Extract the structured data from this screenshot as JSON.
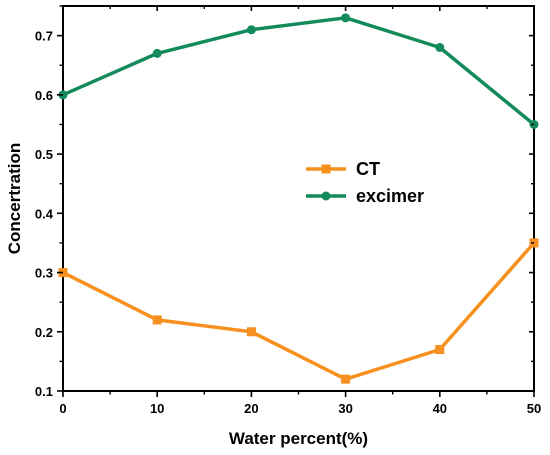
{
  "chart_data": {
    "type": "line",
    "title": "",
    "xlabel": "Water percent(%)",
    "ylabel": "Concertration",
    "x": [
      0,
      10,
      20,
      30,
      40,
      50
    ],
    "xlim": [
      0,
      50
    ],
    "ylim": [
      0.1,
      0.75
    ],
    "x_ticks": [
      0,
      10,
      20,
      30,
      40,
      50
    ],
    "y_ticks": [
      0.1,
      0.2,
      0.3,
      0.4,
      0.5,
      0.6,
      0.7
    ],
    "grid": false,
    "legend_position": "center",
    "series": [
      {
        "name": "CT",
        "color": "#f7901e",
        "marker": "square",
        "values": [
          0.3,
          0.22,
          0.2,
          0.12,
          0.17,
          0.35
        ]
      },
      {
        "name": "excimer",
        "color": "#138a5a",
        "marker": "circle",
        "values": [
          0.6,
          0.67,
          0.71,
          0.73,
          0.68,
          0.55
        ]
      }
    ]
  }
}
